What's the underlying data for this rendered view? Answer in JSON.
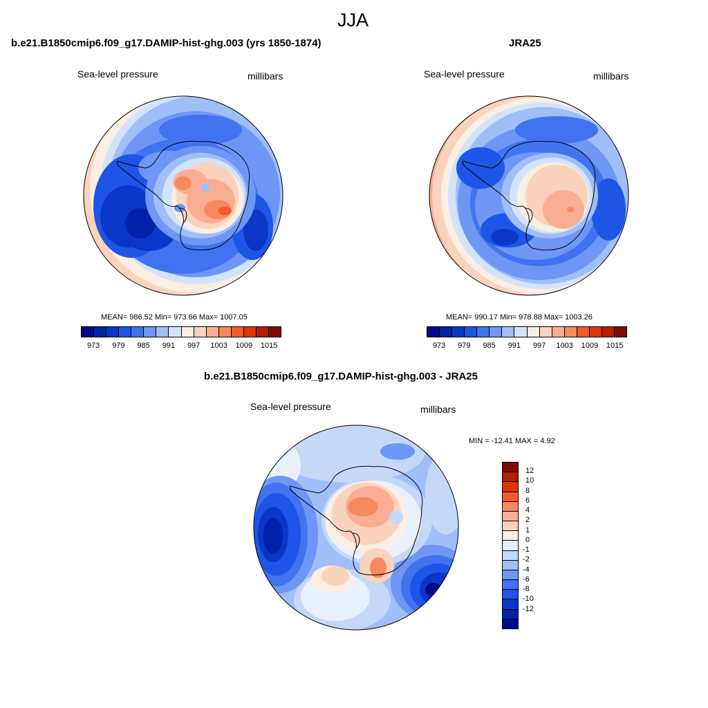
{
  "figure": {
    "title": "JJA"
  },
  "panels": [
    {
      "title": "b.e21.B1850cmip6.f09_g17.DAMIP-hist-ghg.003 (yrs 1850-1874)",
      "left_label": "Sea-level pressure",
      "right_label": "millibars",
      "stats": "MEAN= 986.52  Min= 973.66  Max= 1007.05"
    },
    {
      "title": "JRA25",
      "left_label": "Sea-level pressure",
      "right_label": "millibars",
      "stats": "MEAN= 990.17  Min= 978.88  Max= 1003.26"
    },
    {
      "title": "b.e21.B1850cmip6.f09_g17.DAMIP-hist-ghg.003 - JRA25",
      "left_label": "Sea-level pressure",
      "right_label": "millibars",
      "stats": "MIN = -12.41 MAX =   4.92"
    }
  ],
  "colorbars": {
    "slp": {
      "labels": [
        "973",
        "979",
        "985",
        "991",
        "997",
        "1003",
        "1009",
        "1015"
      ],
      "colors": [
        "#000a8c",
        "#0021a8",
        "#0a37c8",
        "#1e55e6",
        "#4173f0",
        "#6e96f5",
        "#a0bef8",
        "#d2e4fb",
        "#fbeee2",
        "#fbd2bc",
        "#f9ae94",
        "#f7895f",
        "#f55a2d",
        "#e0340a",
        "#b41e00",
        "#800a00"
      ]
    },
    "diff": {
      "labels": [
        "12",
        "10",
        "8",
        "6",
        "4",
        "2",
        "1",
        "0",
        "-1",
        "-2",
        "-4",
        "-6",
        "-8",
        "-10",
        "-12"
      ],
      "colors": [
        "#800a00",
        "#b41e00",
        "#e0340a",
        "#f55a2d",
        "#f7895f",
        "#f9ae94",
        "#fbd2bc",
        "#fbeee2",
        "#e8f0fc",
        "#c4d8f8",
        "#a0bef8",
        "#6e96f5",
        "#4173f0",
        "#1e55e6",
        "#0a37c8",
        "#0021a8",
        "#000a8c"
      ]
    }
  }
}
